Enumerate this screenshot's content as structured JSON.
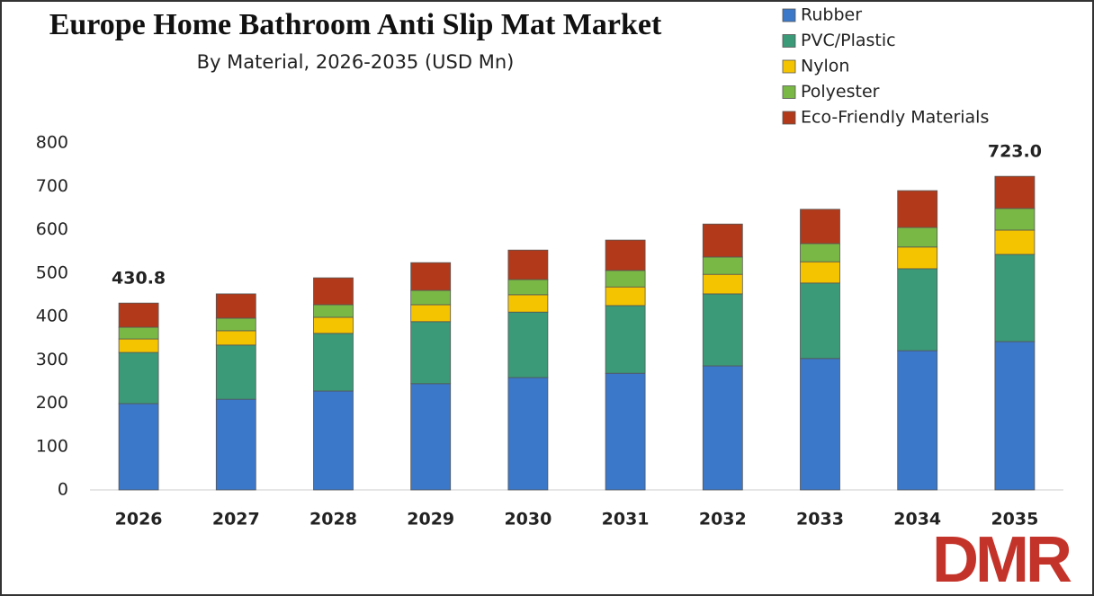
{
  "chart_data": {
    "type": "stacked_bar",
    "title": "Europe Home Bathroom Anti Slip Mat Market",
    "subtitle": "By Material, 2026-2035 (USD Mn)",
    "categories": [
      "2026",
      "2027",
      "2028",
      "2029",
      "2030",
      "2031",
      "2032",
      "2033",
      "2034",
      "2035"
    ],
    "series": [
      {
        "name": "Rubber",
        "color": "#3b78c9",
        "values": [
          199,
          209,
          228,
          245,
          259,
          269,
          286,
          303,
          321,
          342
        ]
      },
      {
        "name": "PVC/Plastic",
        "color": "#3b9a78",
        "values": [
          118,
          125,
          133,
          143,
          151,
          156,
          166,
          174,
          189,
          201
        ]
      },
      {
        "name": "Nylon",
        "color": "#f5c400",
        "values": [
          31,
          33,
          37,
          39,
          40,
          43,
          45,
          49,
          50,
          56
        ]
      },
      {
        "name": "Polyester",
        "color": "#7ab845",
        "values": [
          27,
          29,
          29,
          33,
          35,
          38,
          40,
          42,
          45,
          50
        ]
      },
      {
        "name": "Eco-Friendly Materials",
        "color": "#b23a1a",
        "values": [
          55.8,
          56,
          62,
          64,
          68,
          70,
          76,
          79,
          85,
          74
        ]
      }
    ],
    "total_values": [
      430.8,
      null,
      null,
      null,
      null,
      null,
      null,
      null,
      null,
      723.0
    ],
    "total_labels": [
      "430.8",
      null,
      null,
      null,
      null,
      null,
      null,
      null,
      null,
      "723.0"
    ],
    "ylim": [
      0,
      800
    ],
    "yticks": [
      0,
      100,
      200,
      300,
      400,
      500,
      600,
      700,
      800
    ],
    "grid": false,
    "legend": "top-right"
  },
  "logo": "DMR"
}
